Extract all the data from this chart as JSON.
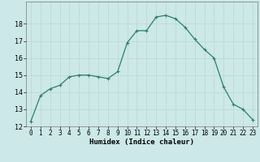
{
  "x": [
    0,
    1,
    2,
    3,
    4,
    5,
    6,
    7,
    8,
    9,
    10,
    11,
    12,
    13,
    14,
    15,
    16,
    17,
    18,
    19,
    20,
    21,
    22,
    23
  ],
  "y": [
    12.3,
    13.8,
    14.2,
    14.4,
    14.9,
    15.0,
    15.0,
    14.9,
    14.8,
    15.2,
    16.9,
    17.6,
    17.6,
    18.4,
    18.5,
    18.3,
    17.8,
    17.1,
    16.5,
    16.0,
    14.3,
    13.3,
    13.0,
    12.4
  ],
  "xlabel": "Humidex (Indice chaleur)",
  "ylim": [
    12,
    19
  ],
  "xlim": [
    -0.5,
    23.5
  ],
  "yticks": [
    12,
    13,
    14,
    15,
    16,
    17,
    18
  ],
  "xticks": [
    0,
    1,
    2,
    3,
    4,
    5,
    6,
    7,
    8,
    9,
    10,
    11,
    12,
    13,
    14,
    15,
    16,
    17,
    18,
    19,
    20,
    21,
    22,
    23
  ],
  "line_color": "#2e7d6e",
  "marker": "+",
  "markersize": 3,
  "linewidth": 0.9,
  "bg_color": "#cce8e8",
  "grid_color": "#b8d8d0",
  "xlabel_fontsize": 6.5,
  "tick_fontsize": 5.5
}
